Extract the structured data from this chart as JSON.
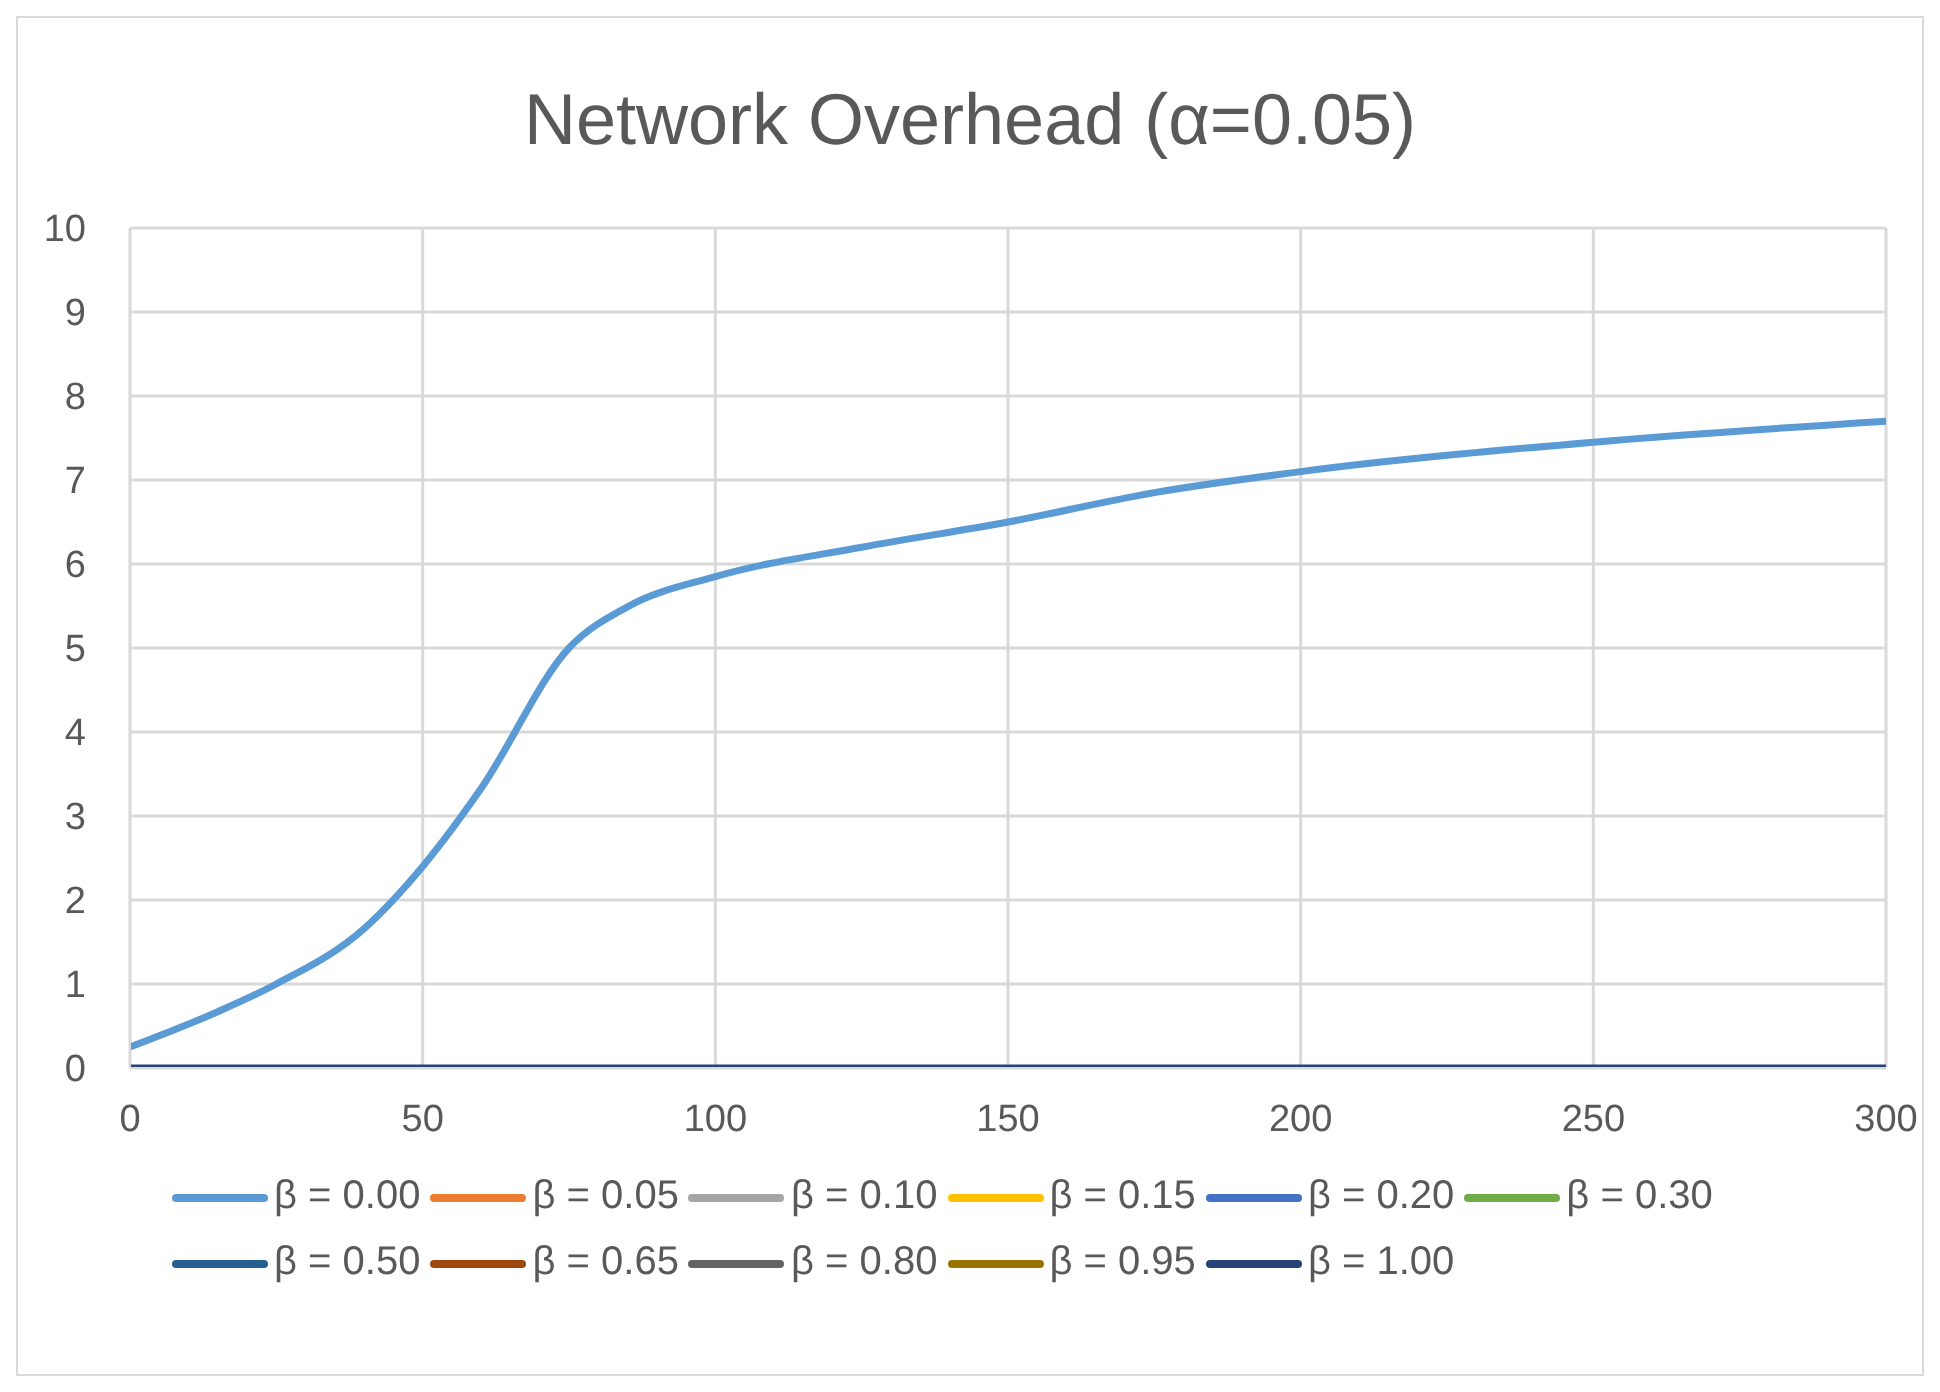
{
  "chart_data": {
    "type": "line",
    "title": "Network Overhead (α=0.05)",
    "xlim": [
      0,
      300
    ],
    "xticks": [
      0,
      50,
      100,
      150,
      200,
      250,
      300
    ],
    "ylim": [
      0,
      10
    ],
    "yticks": [
      0,
      1,
      2,
      3,
      4,
      5,
      6,
      7,
      8,
      9,
      10
    ],
    "grid": true,
    "legend": "bottom",
    "marker": "none",
    "line_style": "solid",
    "series": [
      {
        "name": "β = 0.00",
        "color": "#5b9bd5",
        "x": [
          0,
          15,
          25,
          40,
          50,
          60,
          75,
          85,
          100,
          125,
          150,
          175,
          200,
          250,
          300
        ],
        "values": [
          0.25,
          0.67,
          1.0,
          1.66,
          2.4,
          3.33,
          5.0,
          5.49,
          5.85,
          6.2,
          6.5,
          6.85,
          7.1,
          7.45,
          7.7
        ]
      },
      {
        "name": "β = 0.05",
        "color": "#ed7d31"
      },
      {
        "name": "β = 0.10",
        "color": "#a5a5a5"
      },
      {
        "name": "β = 0.15",
        "color": "#ffc000"
      },
      {
        "name": "β = 0.20",
        "color": "#4472c4"
      },
      {
        "name": "β = 0.30",
        "color": "#70ad47"
      },
      {
        "name": "β = 0.50",
        "color": "#255e91"
      },
      {
        "name": "β = 0.65",
        "color": "#9e480e"
      },
      {
        "name": "β = 0.80",
        "color": "#636363"
      },
      {
        "name": "β = 0.95",
        "color": "#997300"
      },
      {
        "name": "β = 1.00",
        "color": "#264478",
        "x": [
          0,
          300
        ],
        "values": [
          0,
          0
        ]
      }
    ]
  }
}
